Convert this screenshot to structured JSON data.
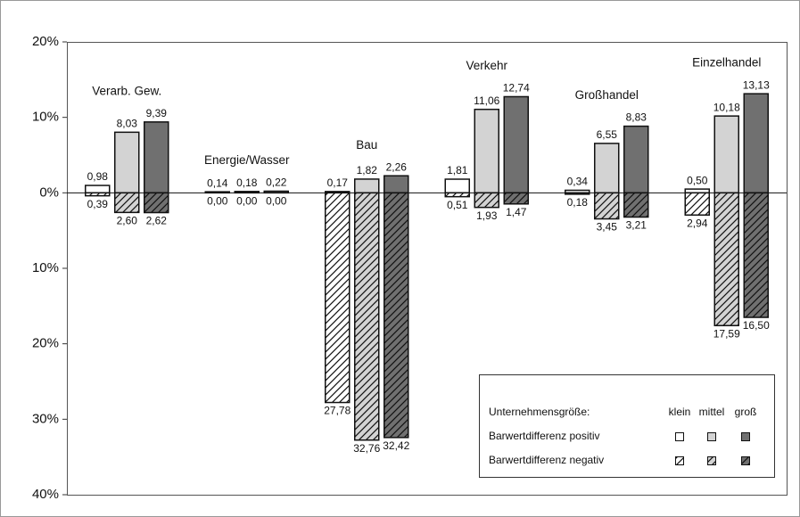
{
  "chart_data": {
    "type": "bar",
    "categories": [
      "Verarb. Gew.",
      "Energie/Wasser",
      "Bau",
      "Verkehr",
      "Großhandel",
      "Einzelhandel"
    ],
    "legend_title": "Unternehmensgröße:",
    "groups": [
      {
        "name": "klein",
        "color": "#ffffff"
      },
      {
        "name": "mittel",
        "color": "#d3d3d3"
      },
      {
        "name": "groß",
        "color": "#707070"
      }
    ],
    "series": [
      {
        "name": "Barwertdifferenz positiv",
        "hatch": false,
        "values": [
          [
            0.98,
            8.03,
            9.39
          ],
          [
            0.14,
            0.18,
            0.22
          ],
          [
            0.17,
            1.82,
            2.26
          ],
          [
            1.81,
            11.06,
            12.74
          ],
          [
            0.34,
            6.55,
            8.83
          ],
          [
            0.5,
            10.18,
            13.13
          ]
        ],
        "value_labels": [
          [
            "0,98",
            "8,03",
            "9,39"
          ],
          [
            "0,14",
            "0,18",
            "0,22"
          ],
          [
            "0,17",
            "1,82",
            "2,26"
          ],
          [
            "1,81",
            "11,06",
            "12,74"
          ],
          [
            "0,34",
            "6,55",
            "8,83"
          ],
          [
            "0,50",
            "10,18",
            "13,13"
          ]
        ]
      },
      {
        "name": "Barwertdifferenz negativ",
        "hatch": true,
        "values": [
          [
            -0.39,
            -2.6,
            -2.62
          ],
          [
            0,
            0,
            0
          ],
          [
            -27.78,
            -32.76,
            -32.42
          ],
          [
            -0.51,
            -1.93,
            -1.47
          ],
          [
            -0.18,
            -3.45,
            -3.21
          ],
          [
            -2.94,
            -17.59,
            -16.5
          ]
        ],
        "value_labels": [
          [
            "0,39",
            "2,60",
            "2,62"
          ],
          [
            "0,00",
            "0,00",
            "0,00"
          ],
          [
            "27,78",
            "32,76",
            "32,42"
          ],
          [
            "0,51",
            "1,93",
            "1,47"
          ],
          [
            "0,18",
            "3,45",
            "3,21"
          ],
          [
            "2,94",
            "17,59",
            "16,50"
          ]
        ]
      }
    ],
    "ylim": [
      -40,
      20
    ],
    "yticks": [
      {
        "value": 20,
        "label": "20%"
      },
      {
        "value": 10,
        "label": "10%"
      },
      {
        "value": 0,
        "label": "0%"
      },
      {
        "value": -10,
        "label": "10%"
      },
      {
        "value": -20,
        "label": "20%"
      },
      {
        "value": -30,
        "label": "30%"
      },
      {
        "value": -40,
        "label": "40%"
      }
    ]
  }
}
